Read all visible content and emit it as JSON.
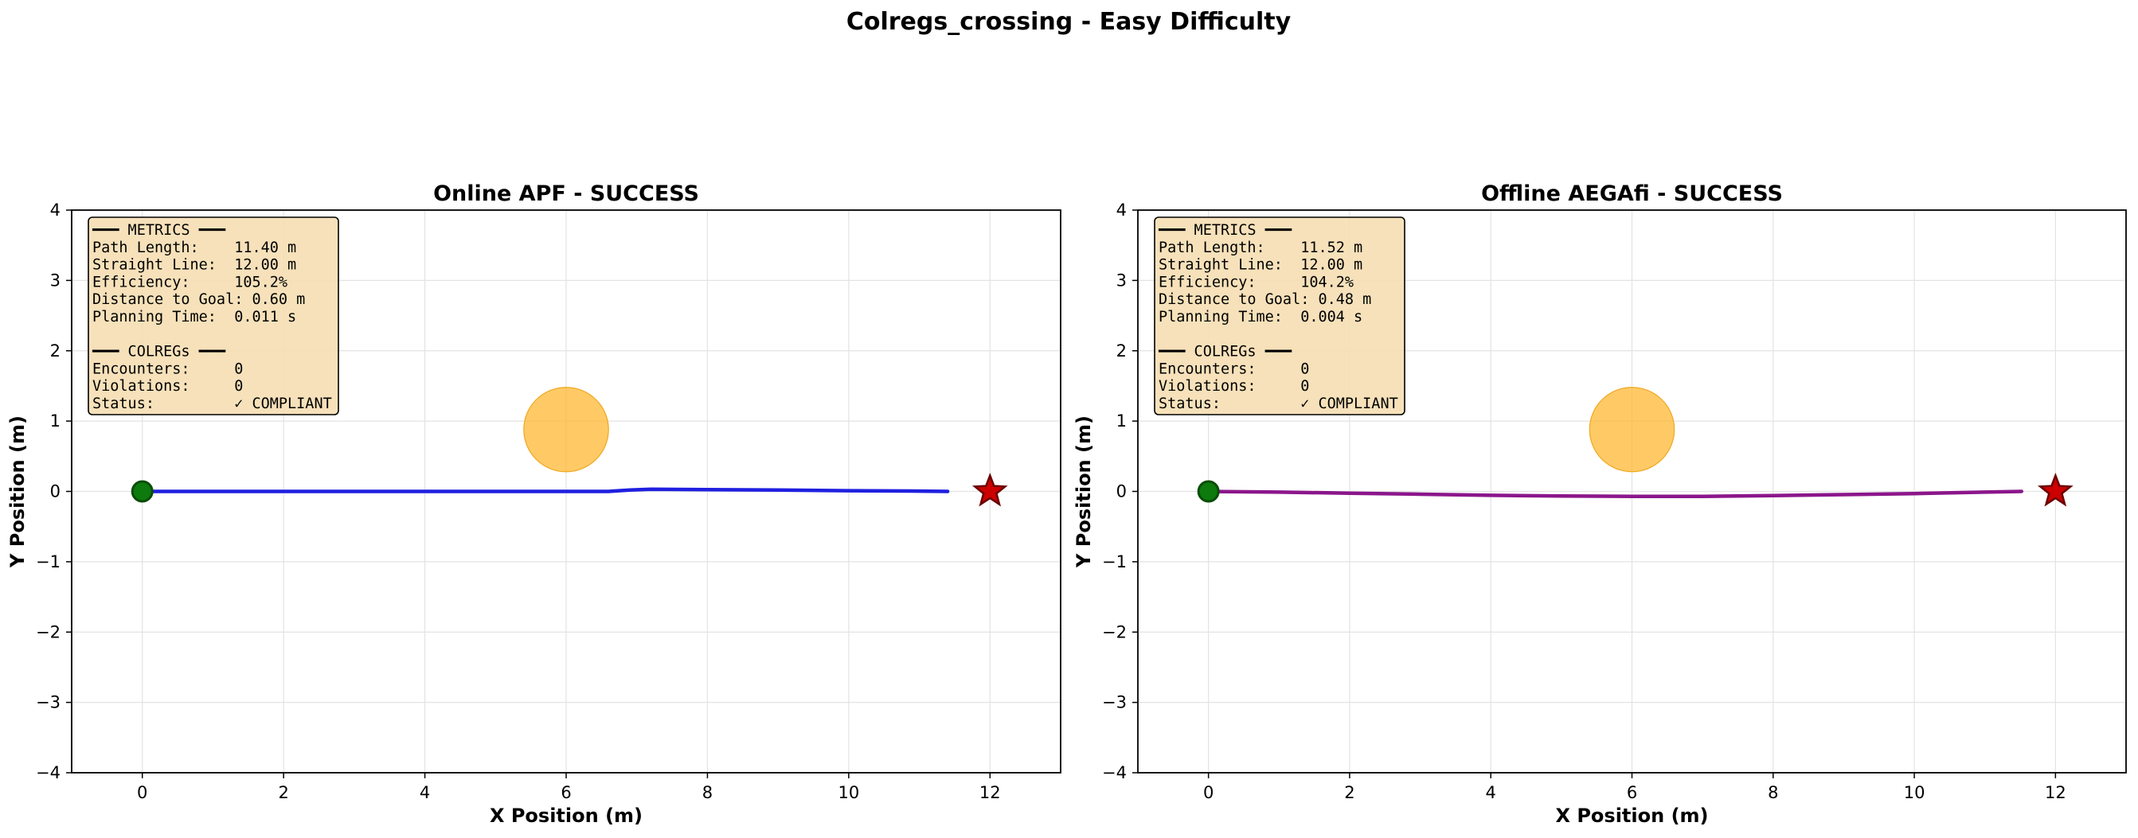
{
  "figure": {
    "title": "Colregs_crossing - Easy Difficulty"
  },
  "chart_data": [
    {
      "type": "line",
      "title": "Online APF - SUCCESS",
      "xlabel": "X Position (m)",
      "ylabel": "Y Position (m)",
      "xlim": [
        -1,
        13
      ],
      "ylim": [
        -4,
        4
      ],
      "xticks": [
        0,
        2,
        4,
        6,
        8,
        10,
        12
      ],
      "yticks": [
        -4,
        -3,
        -2,
        -1,
        0,
        1,
        2,
        3,
        4
      ],
      "ytick_labels": [
        "−4",
        "−3",
        "−2",
        "−1",
        "0",
        "1",
        "2",
        "3",
        "4"
      ],
      "grid": true,
      "path": {
        "color": "#1f1fe0",
        "x": [
          0,
          2,
          4,
          6,
          6.6,
          6.9,
          7.2,
          8,
          9,
          10,
          11,
          11.4
        ],
        "y": [
          0,
          0,
          0,
          0,
          0.0,
          0.02,
          0.03,
          0.025,
          0.02,
          0.01,
          0.005,
          0
        ]
      },
      "start": {
        "x": 0,
        "y": 0,
        "color": "#0d7a0d"
      },
      "goal": {
        "x": 12,
        "y": 0,
        "color": "#cc0000"
      },
      "obstacle": {
        "x": 6,
        "y": 0.88,
        "radius": 0.6,
        "color": "#ffb833"
      },
      "metrics_box": {
        "lines": [
          "━━━ METRICS ━━━",
          "Path Length:    11.40 m",
          "Straight Line:  12.00 m",
          "Efficiency:     105.2%",
          "Distance to Goal: 0.60 m",
          "Planning Time:  0.011 s",
          "",
          "━━━ COLREGs ━━━",
          "Encounters:     0",
          "Violations:     0",
          "Status:         ✓ COMPLIANT"
        ]
      }
    },
    {
      "type": "line",
      "title": "Offline AEGAfi - SUCCESS",
      "xlabel": "X Position (m)",
      "ylabel": "Y Position (m)",
      "xlim": [
        -1,
        13
      ],
      "ylim": [
        -4,
        4
      ],
      "xticks": [
        0,
        2,
        4,
        6,
        8,
        10,
        12
      ],
      "yticks": [
        -4,
        -3,
        -2,
        -1,
        0,
        1,
        2,
        3,
        4
      ],
      "ytick_labels": [
        "−4",
        "−3",
        "−2",
        "−1",
        "0",
        "1",
        "2",
        "3",
        "4"
      ],
      "grid": true,
      "path": {
        "color": "#8b168b",
        "x": [
          0,
          1,
          2,
          3,
          4,
          5,
          6,
          7,
          8,
          9,
          10,
          11,
          11.52
        ],
        "y": [
          0,
          -0.01,
          -0.025,
          -0.04,
          -0.055,
          -0.065,
          -0.07,
          -0.07,
          -0.06,
          -0.045,
          -0.03,
          -0.01,
          0
        ]
      },
      "start": {
        "x": 0,
        "y": 0,
        "color": "#0d7a0d"
      },
      "goal": {
        "x": 12,
        "y": 0,
        "color": "#cc0000"
      },
      "obstacle": {
        "x": 6,
        "y": 0.88,
        "radius": 0.6,
        "color": "#ffb833"
      },
      "metrics_box": {
        "lines": [
          "━━━ METRICS ━━━",
          "Path Length:    11.52 m",
          "Straight Line:  12.00 m",
          "Efficiency:     104.2%",
          "Distance to Goal: 0.48 m",
          "Planning Time:  0.004 s",
          "",
          "━━━ COLREGs ━━━",
          "Encounters:     0",
          "Violations:     0",
          "Status:         ✓ COMPLIANT"
        ]
      }
    }
  ]
}
